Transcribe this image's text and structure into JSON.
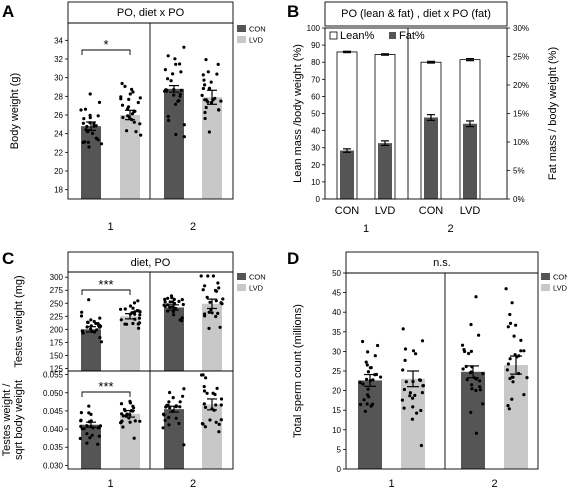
{
  "colors": {
    "con": "#555555",
    "lvd": "#c8c8c8",
    "point": "#000000",
    "frame": "#000000"
  },
  "chart_data": [
    {
      "panel": "A",
      "type": "bar",
      "header": "PO, diet x PO",
      "ylabel": "Body weight (g)",
      "ylim": [
        17,
        35
      ],
      "yticks": [
        18,
        20,
        22,
        24,
        26,
        28,
        30,
        32,
        34
      ],
      "legend": [
        "CON",
        "LVD"
      ],
      "groups": [
        "1",
        "2"
      ],
      "series": [
        {
          "name": "CON",
          "values": [
            24.8,
            28.8
          ],
          "errors": [
            0.45,
            0.35
          ]
        },
        {
          "name": "LVD",
          "values": [
            26.0,
            27.9
          ],
          "errors": [
            0.5,
            0.75
          ]
        }
      ],
      "significance": [
        {
          "group": 0,
          "label": "*"
        }
      ]
    },
    {
      "panel": "B",
      "type": "bar",
      "header": "PO (lean & fat) , diet x PO (fat)",
      "ylabel": "Lean mass /body weight (%)",
      "ylabel_right": "Fat mass / body weight (%)",
      "ylim": [
        0,
        100
      ],
      "yticks": [
        0,
        10,
        20,
        30,
        40,
        50,
        60,
        70,
        80,
        90,
        100
      ],
      "ylim_right": [
        0,
        30
      ],
      "yticks_right": [
        "0%",
        "5%",
        "10%",
        "15%",
        "20%",
        "25%",
        "30%"
      ],
      "legend": [
        "Lean%",
        "Fat%"
      ],
      "categories": [
        "CON",
        "LVD",
        "CON",
        "LVD"
      ],
      "groups": [
        "1",
        "2"
      ],
      "series": [
        {
          "name": "Lean%",
          "values": [
            86.0,
            84.5,
            80.0,
            81.5
          ],
          "errors": [
            0.4,
            0.4,
            0.5,
            0.6
          ]
        },
        {
          "name": "Fat%",
          "values": [
            8.5,
            9.8,
            14.3,
            13.2
          ],
          "errors": [
            0.3,
            0.4,
            0.5,
            0.5
          ]
        }
      ]
    },
    {
      "panel": "C",
      "type": "bar",
      "header": "diet, PO",
      "legend": [
        "CON",
        "LVD"
      ],
      "groups": [
        "1",
        "2"
      ],
      "subplots": [
        {
          "ylabel": "Testes weight (mg)",
          "ylim": [
            120,
            310
          ],
          "yticks": [
            125,
            150,
            175,
            200,
            225,
            250,
            275,
            300
          ],
          "series": [
            {
              "name": "CON",
              "values": [
                200,
                242
              ],
              "errors": [
                5,
                5
              ]
            },
            {
              "name": "LVD",
              "values": [
                225,
                249
              ],
              "errors": [
                5,
                9
              ]
            }
          ],
          "significance": [
            {
              "group": 0,
              "label": "***"
            }
          ]
        },
        {
          "ylabel": "Testes weight /\nsqrt body weight",
          "ylim": [
            0.029,
            0.056
          ],
          "yticks": [
            "0.030",
            "0.035",
            "0.040",
            "0.045",
            "0.050",
            "0.055"
          ],
          "series": [
            {
              "name": "CON",
              "values": [
                0.0412,
                0.0455
              ],
              "errors": [
                0.0007,
                0.0008
              ]
            },
            {
              "name": "LVD",
              "values": [
                0.0442,
                0.0468
              ],
              "errors": [
                0.0009,
                0.0015
              ]
            }
          ],
          "significance": [
            {
              "group": 0,
              "label": "***"
            }
          ]
        }
      ]
    },
    {
      "panel": "D",
      "type": "bar",
      "header": "n.s.",
      "ylabel": "Total sperm count (millions)",
      "ylim": [
        0,
        50
      ],
      "yticks": [
        0,
        5,
        10,
        15,
        20,
        25,
        30,
        35,
        40,
        45,
        50
      ],
      "legend": [
        "CON",
        "LVD"
      ],
      "groups": [
        "1",
        "2"
      ],
      "series": [
        {
          "name": "CON",
          "values": [
            22.6,
            24.8
          ],
          "errors": [
            1.5,
            1.5
          ]
        },
        {
          "name": "LVD",
          "values": [
            23.0,
            26.5
          ],
          "errors": [
            2.0,
            2.3
          ]
        }
      ]
    }
  ]
}
